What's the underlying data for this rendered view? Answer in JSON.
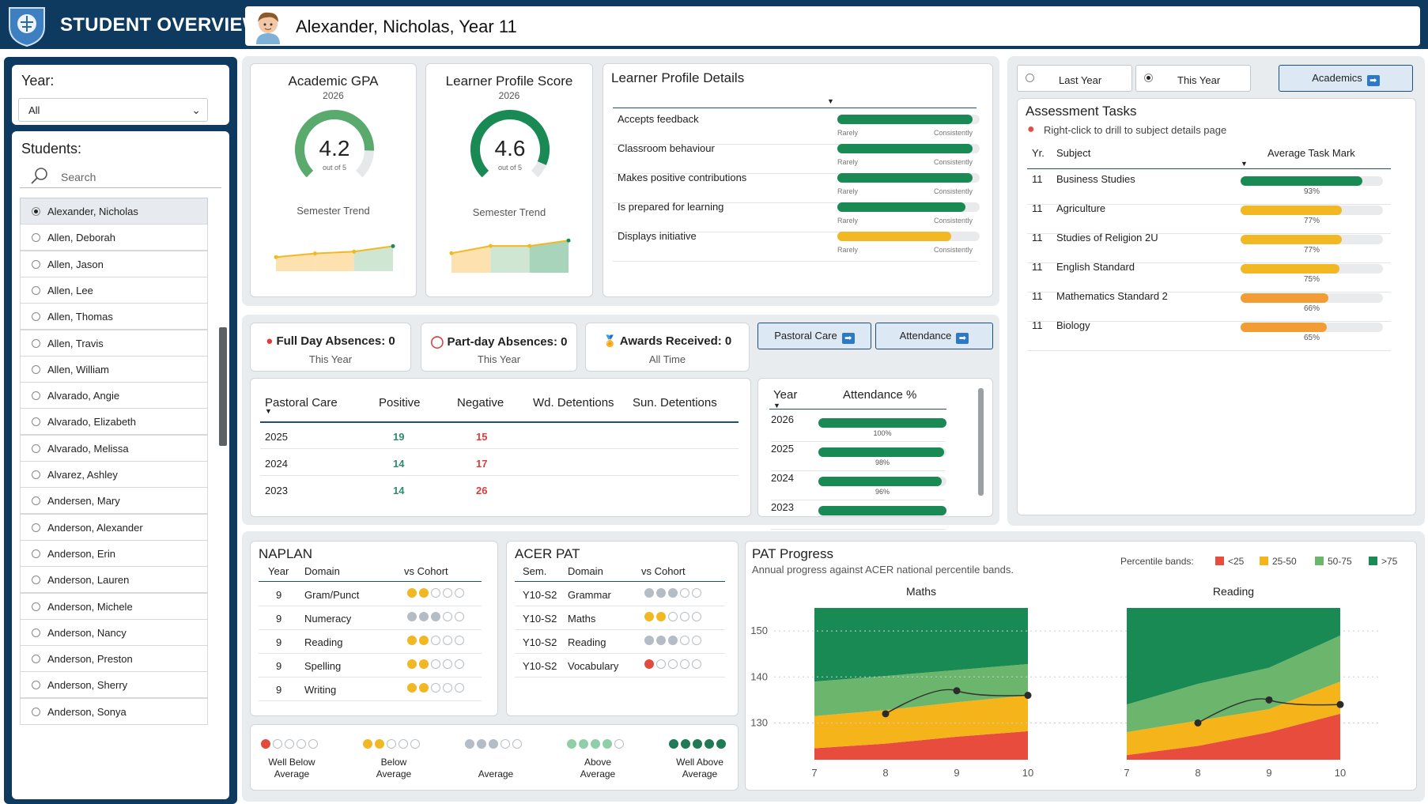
{
  "header": {
    "app_title": "STUDENT OVERVIEW",
    "student_name": "Alexander, Nicholas, Year 11"
  },
  "sidebar": {
    "year_label": "Year:",
    "year_value": "All",
    "students_label": "Students:",
    "search_placeholder": "Search",
    "students": [
      "Alexander, Nicholas",
      "Allen, Deborah",
      "Allen, Jason",
      "Allen, Lee",
      "Allen, Thomas",
      "Allen, Travis",
      "Allen, William",
      "Alvarado, Angie",
      "Alvarado, Elizabeth",
      "Alvarado, Melissa",
      "Alvarez, Ashley",
      "Andersen, Mary",
      "Anderson, Alexander",
      "Anderson, Erin",
      "Anderson, Lauren",
      "Anderson, Michele",
      "Anderson, Nancy",
      "Anderson, Preston",
      "Anderson, Sherry",
      "Anderson, Sonya"
    ],
    "selected_student": "Alexander, Nicholas"
  },
  "gpa": {
    "title": "Academic GPA",
    "year": "2026",
    "value": "4.2",
    "out_of": "out of 5",
    "fraction": 0.84,
    "trend_label": "Semester Trend",
    "color": "#5aaa6e"
  },
  "lps": {
    "title": "Learner Profile Score",
    "year": "2026",
    "value": "4.6",
    "out_of": "out of 5",
    "fraction": 0.92,
    "trend_label": "Semester Trend",
    "color": "#1a8a55"
  },
  "learner_profile": {
    "title": "Learner Profile Details",
    "low_label": "Rarely",
    "high_label": "Consistently",
    "items": [
      {
        "label": "Accepts feedback",
        "level": 0.95,
        "color": "#1a8a55"
      },
      {
        "label": "Classroom behaviour",
        "level": 0.95,
        "color": "#1a8a55"
      },
      {
        "label": "Makes positive contributions",
        "level": 0.95,
        "color": "#1a8a55"
      },
      {
        "label": "Is prepared for learning",
        "level": 0.9,
        "color": "#1a8a55"
      },
      {
        "label": "Displays initiative",
        "level": 0.8,
        "color": "#f2b824"
      }
    ]
  },
  "period_tabs": {
    "last_year": "Last Year",
    "this_year": "This Year",
    "selected": "This Year"
  },
  "nav": {
    "academics": "Academics",
    "pastoral_care": "Pastoral Care",
    "attendance": "Attendance"
  },
  "assessment": {
    "title": "Assessment Tasks",
    "hint": "Right-click to drill to subject details page",
    "col_year": "Yr.",
    "col_subject": "Subject",
    "col_mark": "Average Task Mark",
    "rows": [
      {
        "year": "11",
        "subject": "Business Studies",
        "mark": 93,
        "label": "93%",
        "color": "#1a8a55"
      },
      {
        "year": "11",
        "subject": "Agriculture",
        "mark": 77,
        "label": "77%",
        "color": "#f2b824"
      },
      {
        "year": "11",
        "subject": "Studies of Religion 2U",
        "mark": 77,
        "label": "77%",
        "color": "#f2b824"
      },
      {
        "year": "11",
        "subject": "English Standard",
        "mark": 75,
        "label": "75%",
        "color": "#f2b824"
      },
      {
        "year": "11",
        "subject": "Mathematics Standard 2",
        "mark": 66,
        "label": "66%",
        "color": "#f39c33"
      },
      {
        "year": "11",
        "subject": "Biology",
        "mark": 65,
        "label": "65%",
        "color": "#f39c33"
      }
    ]
  },
  "stats": {
    "full_day": {
      "title": "Full Day Absences: 0",
      "sub": "This Year"
    },
    "part_day": {
      "title": "Part-day Absences: 0",
      "sub": "This Year"
    },
    "awards": {
      "title": "Awards Received: 0",
      "sub": "All Time"
    }
  },
  "pastoral": {
    "headers": [
      "Pastoral Care",
      "Positive",
      "Negative",
      "Wd. Detentions",
      "Sun. Detentions"
    ],
    "rows": [
      {
        "year": "2025",
        "positive": "19",
        "negative": "15"
      },
      {
        "year": "2024",
        "positive": "14",
        "negative": "17"
      },
      {
        "year": "2023",
        "positive": "14",
        "negative": "26"
      }
    ]
  },
  "attendance": {
    "col_year": "Year",
    "col_pct": "Attendance %",
    "rows": [
      {
        "year": "2026",
        "pct": 100,
        "label": "100%"
      },
      {
        "year": "2025",
        "pct": 98,
        "label": "98%"
      },
      {
        "year": "2024",
        "pct": 96,
        "label": "96%"
      },
      {
        "year": "2023",
        "pct": 100,
        "label": ""
      }
    ]
  },
  "naplan": {
    "title": "NAPLAN",
    "col_year": "Year",
    "col_domain": "Domain",
    "col_cohort": "vs Cohort",
    "rows": [
      {
        "year": "9",
        "domain": "Gram/Punct",
        "level": 2
      },
      {
        "year": "9",
        "domain": "Numeracy",
        "level": 3
      },
      {
        "year": "9",
        "domain": "Reading",
        "level": 2
      },
      {
        "year": "9",
        "domain": "Spelling",
        "level": 2
      },
      {
        "year": "9",
        "domain": "Writing",
        "level": 2
      }
    ]
  },
  "acer_pat": {
    "title": "ACER PAT",
    "col_sem": "Sem.",
    "col_domain": "Domain",
    "col_cohort": "vs Cohort",
    "rows": [
      {
        "sem": "Y10-S2",
        "domain": "Grammar",
        "level": 3
      },
      {
        "sem": "Y10-S2",
        "domain": "Maths",
        "level": 2
      },
      {
        "sem": "Y10-S2",
        "domain": "Reading",
        "level": 3
      },
      {
        "sem": "Y10-S2",
        "domain": "Vocabulary",
        "level": 1
      }
    ]
  },
  "dot_legend": [
    {
      "label": "Well Below Average",
      "line1": "Well Below",
      "line2": "Average",
      "level": 1
    },
    {
      "label": "Below Average",
      "line1": "Below",
      "line2": "Average",
      "level": 2
    },
    {
      "label": "Average",
      "line1": "",
      "line2": "Average",
      "level": 3
    },
    {
      "label": "Above Average",
      "line1": "Above",
      "line2": "Average",
      "level": 4
    },
    {
      "label": "Well Above Average",
      "line1": "Well Above",
      "line2": "Average",
      "level": 5
    }
  ],
  "level_colors": {
    "1": "#e04b3e",
    "2": "#f2b824",
    "3": "#b4bcc6",
    "4": "#8fcfa8",
    "5": "#1f7a55"
  },
  "pat_progress": {
    "title": "PAT Progress",
    "subtitle": "Annual progress against ACER national percentile bands.",
    "bands_label": "Percentile bands:",
    "bands": [
      {
        "name": "<25",
        "color": "#e74c3c"
      },
      {
        "name": "25-50",
        "color": "#f4b41a"
      },
      {
        "name": "50-75",
        "color": "#6cb56c"
      },
      {
        "name": ">75",
        "color": "#1a8a55"
      }
    ]
  },
  "chart_data": [
    {
      "type": "area",
      "title": "Maths",
      "x": [
        7,
        8,
        9,
        10
      ],
      "ylim": [
        122,
        155
      ],
      "yticks": [
        130,
        140,
        150
      ],
      "bands": {
        "p25": [
          124.5,
          125.5,
          127,
          128.2
        ],
        "p50": [
          131.5,
          132.8,
          134.5,
          136
        ],
        "p75": [
          139,
          140.2,
          141.5,
          142.8
        ]
      },
      "series": [
        {
          "x": [
            8,
            9,
            10
          ],
          "values": [
            132,
            137,
            136
          ]
        }
      ]
    },
    {
      "type": "area",
      "title": "Reading",
      "x": [
        7,
        8,
        9,
        10
      ],
      "ylim": [
        122,
        155
      ],
      "yticks": [
        130,
        140,
        150
      ],
      "bands": {
        "p25": [
          123,
          125,
          128,
          132
        ],
        "p50": [
          128,
          130.5,
          133,
          139
        ],
        "p75": [
          134,
          138.5,
          142,
          149
        ]
      },
      "series": [
        {
          "x": [
            8,
            9,
            10
          ],
          "values": [
            130,
            135,
            134
          ]
        }
      ]
    }
  ],
  "sparklines": {
    "gpa": [
      3.6,
      3.8,
      3.9,
      4.2
    ],
    "lps": [
      3.9,
      4.3,
      4.3,
      4.6
    ]
  }
}
